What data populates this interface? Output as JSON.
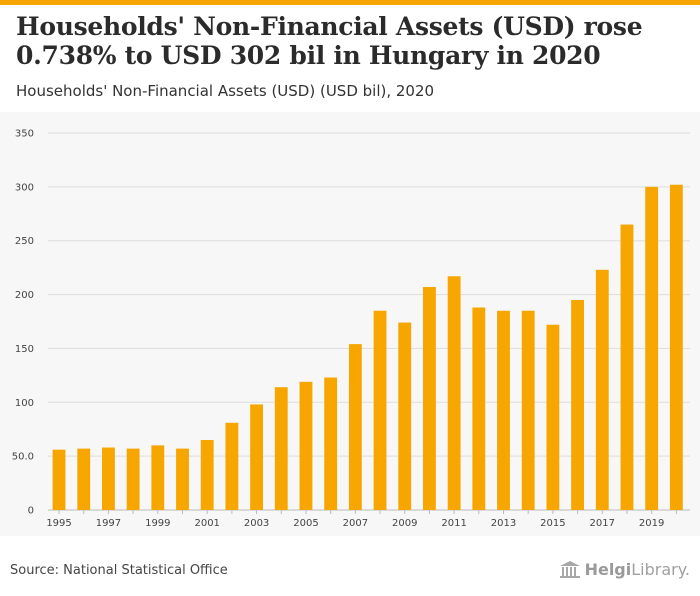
{
  "header": {
    "title": "Households' Non-Financial Assets (USD) rose 0.738% to USD 302 bil in Hungary in 2020",
    "subtitle": "Households' Non-Financial Assets (USD) (USD bil), 2020"
  },
  "footer": {
    "source": "Source: National Statistical Office",
    "logo_bold": "Helgi",
    "logo_rest": "Library."
  },
  "colors": {
    "bar": "#f7a600",
    "accent": "#f7a600",
    "grid": "#dddddd",
    "background": "#f7f7f7"
  },
  "chart_data": {
    "type": "bar",
    "title": "Households' Non-Financial Assets (USD) (USD bil), 2020",
    "xlabel": "",
    "ylabel": "",
    "ylim": [
      0,
      350
    ],
    "yticks": [
      0,
      50,
      100,
      150,
      200,
      250,
      300,
      350
    ],
    "ytick_labels": [
      "0",
      "50.0",
      "100",
      "150",
      "200",
      "250",
      "300",
      "350"
    ],
    "categories": [
      "1995",
      "1996",
      "1997",
      "1998",
      "1999",
      "2000",
      "2001",
      "2002",
      "2003",
      "2004",
      "2005",
      "2006",
      "2007",
      "2008",
      "2009",
      "2010",
      "2011",
      "2012",
      "2013",
      "2014",
      "2015",
      "2016",
      "2017",
      "2018",
      "2019",
      "2020"
    ],
    "xtick_labels": [
      "1995",
      "",
      "1997",
      "",
      "1999",
      "",
      "2001",
      "",
      "2003",
      "",
      "2005",
      "",
      "2007",
      "",
      "2009",
      "",
      "2011",
      "",
      "2013",
      "",
      "2015",
      "",
      "2017",
      "",
      "2019",
      ""
    ],
    "values": [
      56,
      57,
      58,
      57,
      60,
      57,
      65,
      81,
      98,
      114,
      119,
      123,
      154,
      185,
      174,
      207,
      217,
      188,
      185,
      185,
      172,
      195,
      223,
      265,
      300,
      302
    ]
  }
}
